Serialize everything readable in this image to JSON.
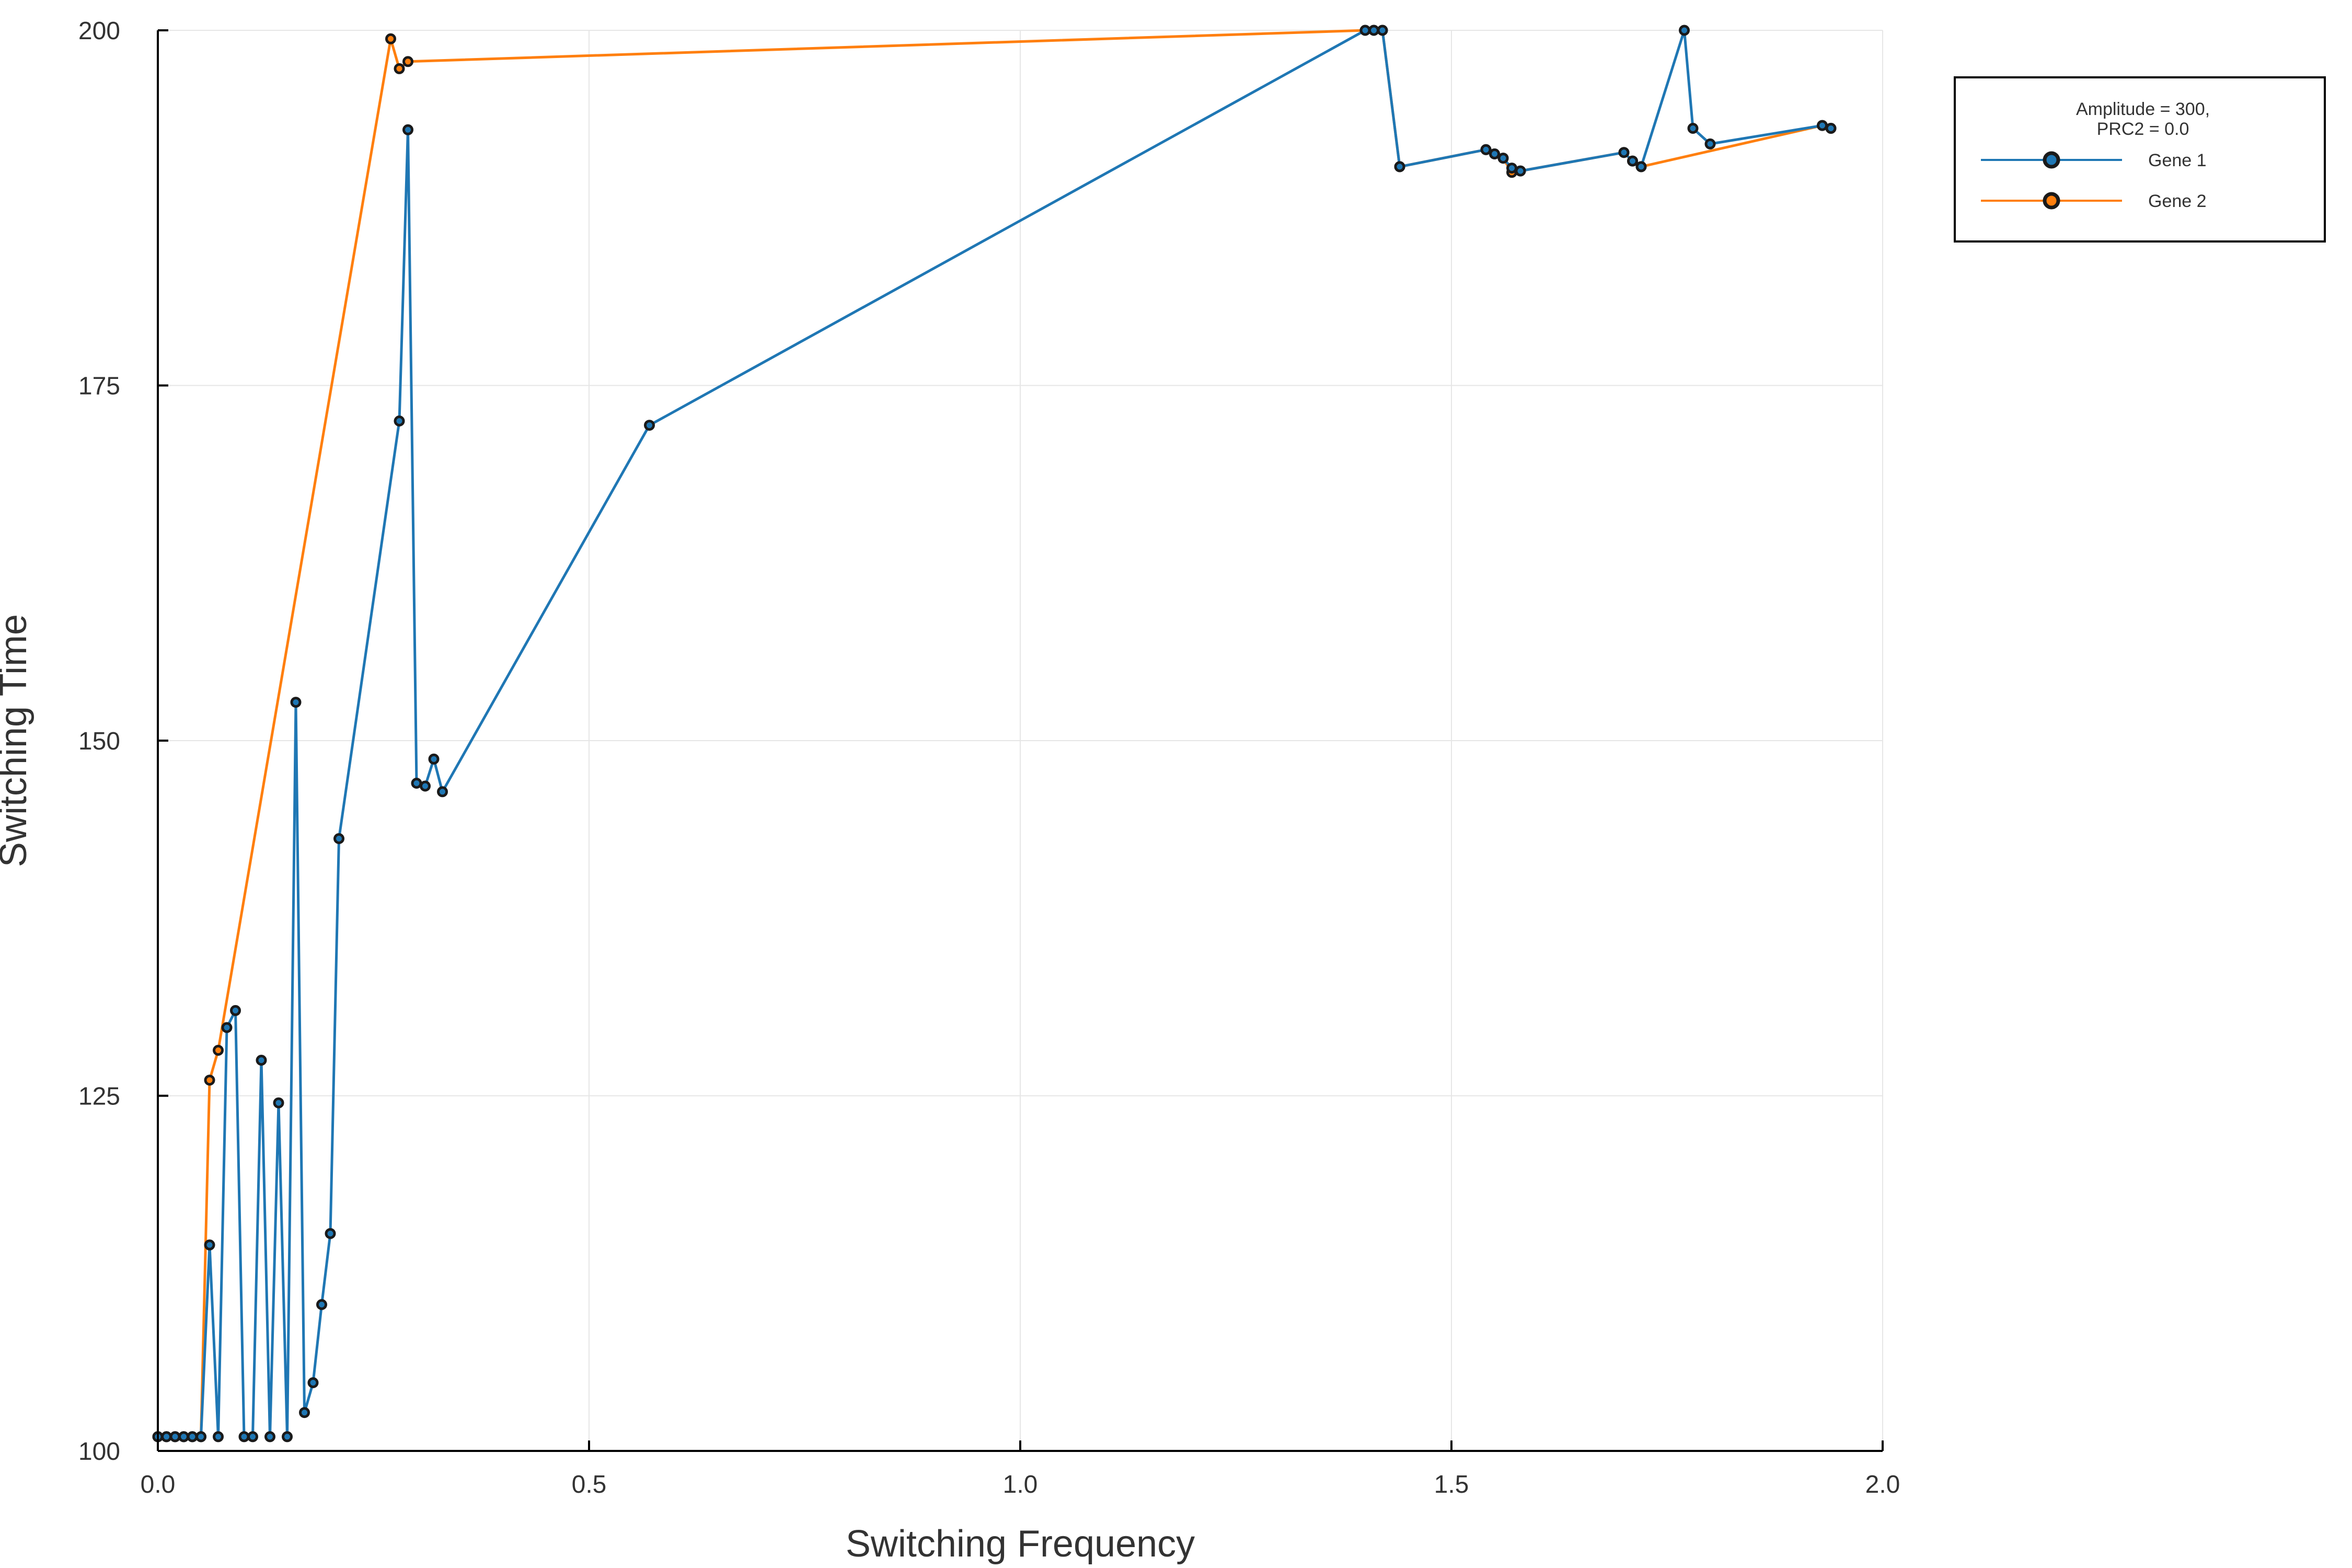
{
  "chart_data": {
    "type": "line",
    "xlabel": "Switching Frequency",
    "ylabel": "Switching Time",
    "xlim": [
      0.0,
      2.0
    ],
    "ylim": [
      100,
      200
    ],
    "xticks": [
      "0.0",
      "0.5",
      "1.0",
      "1.5",
      "2.0"
    ],
    "yticks": [
      "100",
      "125",
      "150",
      "175",
      "200"
    ],
    "grid": true,
    "legend_position": "top-right, outside plot",
    "legend_title": [
      "Amplitude = 300,",
      "PRC2  = 0.0"
    ],
    "series": [
      {
        "name": "Gene 1",
        "color": "#1f77b4",
        "x": [
          0.0,
          0.01,
          0.02,
          0.03,
          0.04,
          0.05,
          0.06,
          0.07,
          0.08,
          0.09,
          0.1,
          0.11,
          0.12,
          0.13,
          0.14,
          0.15,
          0.16,
          0.17,
          0.18,
          0.19,
          0.2,
          0.21,
          0.28,
          0.29,
          0.3,
          0.31,
          0.32,
          0.33,
          0.57,
          1.4,
          1.41,
          1.42,
          1.44,
          1.54,
          1.55,
          1.56,
          1.57,
          1.58,
          1.7,
          1.71,
          1.72,
          1.77,
          1.78,
          1.8,
          1.93,
          1.94
        ],
        "y": [
          101,
          101,
          101,
          101,
          101,
          101,
          114.5,
          101,
          129.8,
          131,
          101,
          101,
          127.5,
          101,
          124.5,
          101,
          152.7,
          102.7,
          104.8,
          110.3,
          115.3,
          143.1,
          172.5,
          193,
          147,
          146.8,
          148.7,
          146.4,
          172.2,
          200,
          200,
          200,
          190.4,
          191.6,
          191.3,
          191,
          190.3,
          190.1,
          191.4,
          190.8,
          190.4,
          200,
          193.1,
          192,
          193.3,
          193.1
        ]
      },
      {
        "name": "Gene 2",
        "color": "#ff7f0e",
        "x": [
          0.0,
          0.01,
          0.02,
          0.03,
          0.04,
          0.05,
          0.06,
          0.07,
          0.27,
          0.28,
          0.29,
          1.4,
          1.41,
          1.42,
          1.44,
          1.54,
          1.55,
          1.56,
          1.57,
          1.58,
          1.7,
          1.71,
          1.72,
          1.93,
          1.94
        ],
        "y": [
          101,
          101,
          101,
          101,
          101,
          101,
          126.1,
          128.2,
          199.4,
          197.3,
          197.8,
          200,
          200,
          200,
          190.4,
          191.6,
          191.3,
          191,
          190,
          190.1,
          191.4,
          190.8,
          190.4,
          193.3,
          193.1
        ]
      }
    ]
  }
}
